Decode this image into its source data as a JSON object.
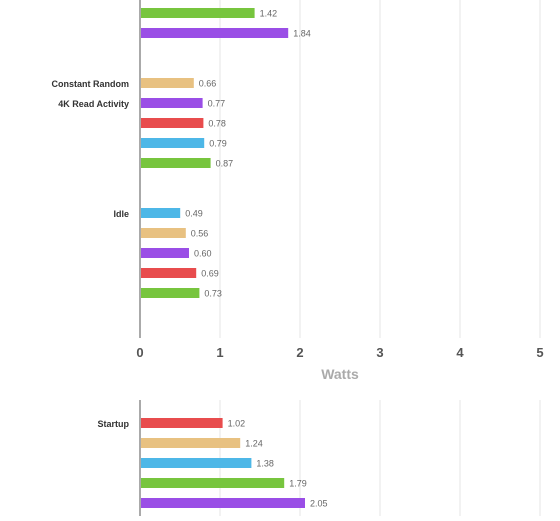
{
  "chart_data": [
    {
      "type": "bar",
      "orientation": "horizontal",
      "title": "",
      "xlabel": "Watts",
      "ylabel": "",
      "xlim": [
        0,
        5
      ],
      "x_ticks": [
        "0",
        "1",
        "2",
        "3",
        "4",
        "5"
      ],
      "grid": true,
      "groups": [
        {
          "label": "",
          "bars": [
            {
              "value": 1.42,
              "label": "1.42",
              "color": "#77c53e"
            },
            {
              "value": 1.84,
              "label": "1.84",
              "color": "#9a4ee6"
            }
          ]
        },
        {
          "label": "Constant Random 4K Read Activity",
          "label_lines": [
            "Constant Random",
            "4K Read Activity"
          ],
          "bars": [
            {
              "value": 0.66,
              "label": "0.66",
              "color": "#e8c181"
            },
            {
              "value": 0.77,
              "label": "0.77",
              "color": "#9a4ee6"
            },
            {
              "value": 0.78,
              "label": "0.78",
              "color": "#e84c4d"
            },
            {
              "value": 0.79,
              "label": "0.79",
              "color": "#4db7e7"
            },
            {
              "value": 0.87,
              "label": "0.87",
              "color": "#77c53e"
            }
          ]
        },
        {
          "label": "Idle",
          "label_lines": [
            "Idle"
          ],
          "bars": [
            {
              "value": 0.49,
              "label": "0.49",
              "color": "#4db7e7"
            },
            {
              "value": 0.56,
              "label": "0.56",
              "color": "#e8c181"
            },
            {
              "value": 0.6,
              "label": "0.60",
              "color": "#9a4ee6"
            },
            {
              "value": 0.69,
              "label": "0.69",
              "color": "#e84c4d"
            },
            {
              "value": 0.73,
              "label": "0.73",
              "color": "#77c53e"
            }
          ]
        }
      ]
    },
    {
      "type": "bar",
      "orientation": "horizontal",
      "title": "",
      "xlabel": "",
      "ylabel": "",
      "xlim": [
        0,
        5
      ],
      "grid": true,
      "groups": [
        {
          "label": "Startup",
          "label_lines": [
            "Startup"
          ],
          "bars": [
            {
              "value": 1.02,
              "label": "1.02",
              "color": "#e84c4d"
            },
            {
              "value": 1.24,
              "label": "1.24",
              "color": "#e8c181"
            },
            {
              "value": 1.38,
              "label": "1.38",
              "color": "#4db7e7"
            },
            {
              "value": 1.79,
              "label": "1.79",
              "color": "#77c53e"
            },
            {
              "value": 2.05,
              "label": "2.05",
              "color": "#9a4ee6"
            }
          ]
        }
      ]
    }
  ]
}
